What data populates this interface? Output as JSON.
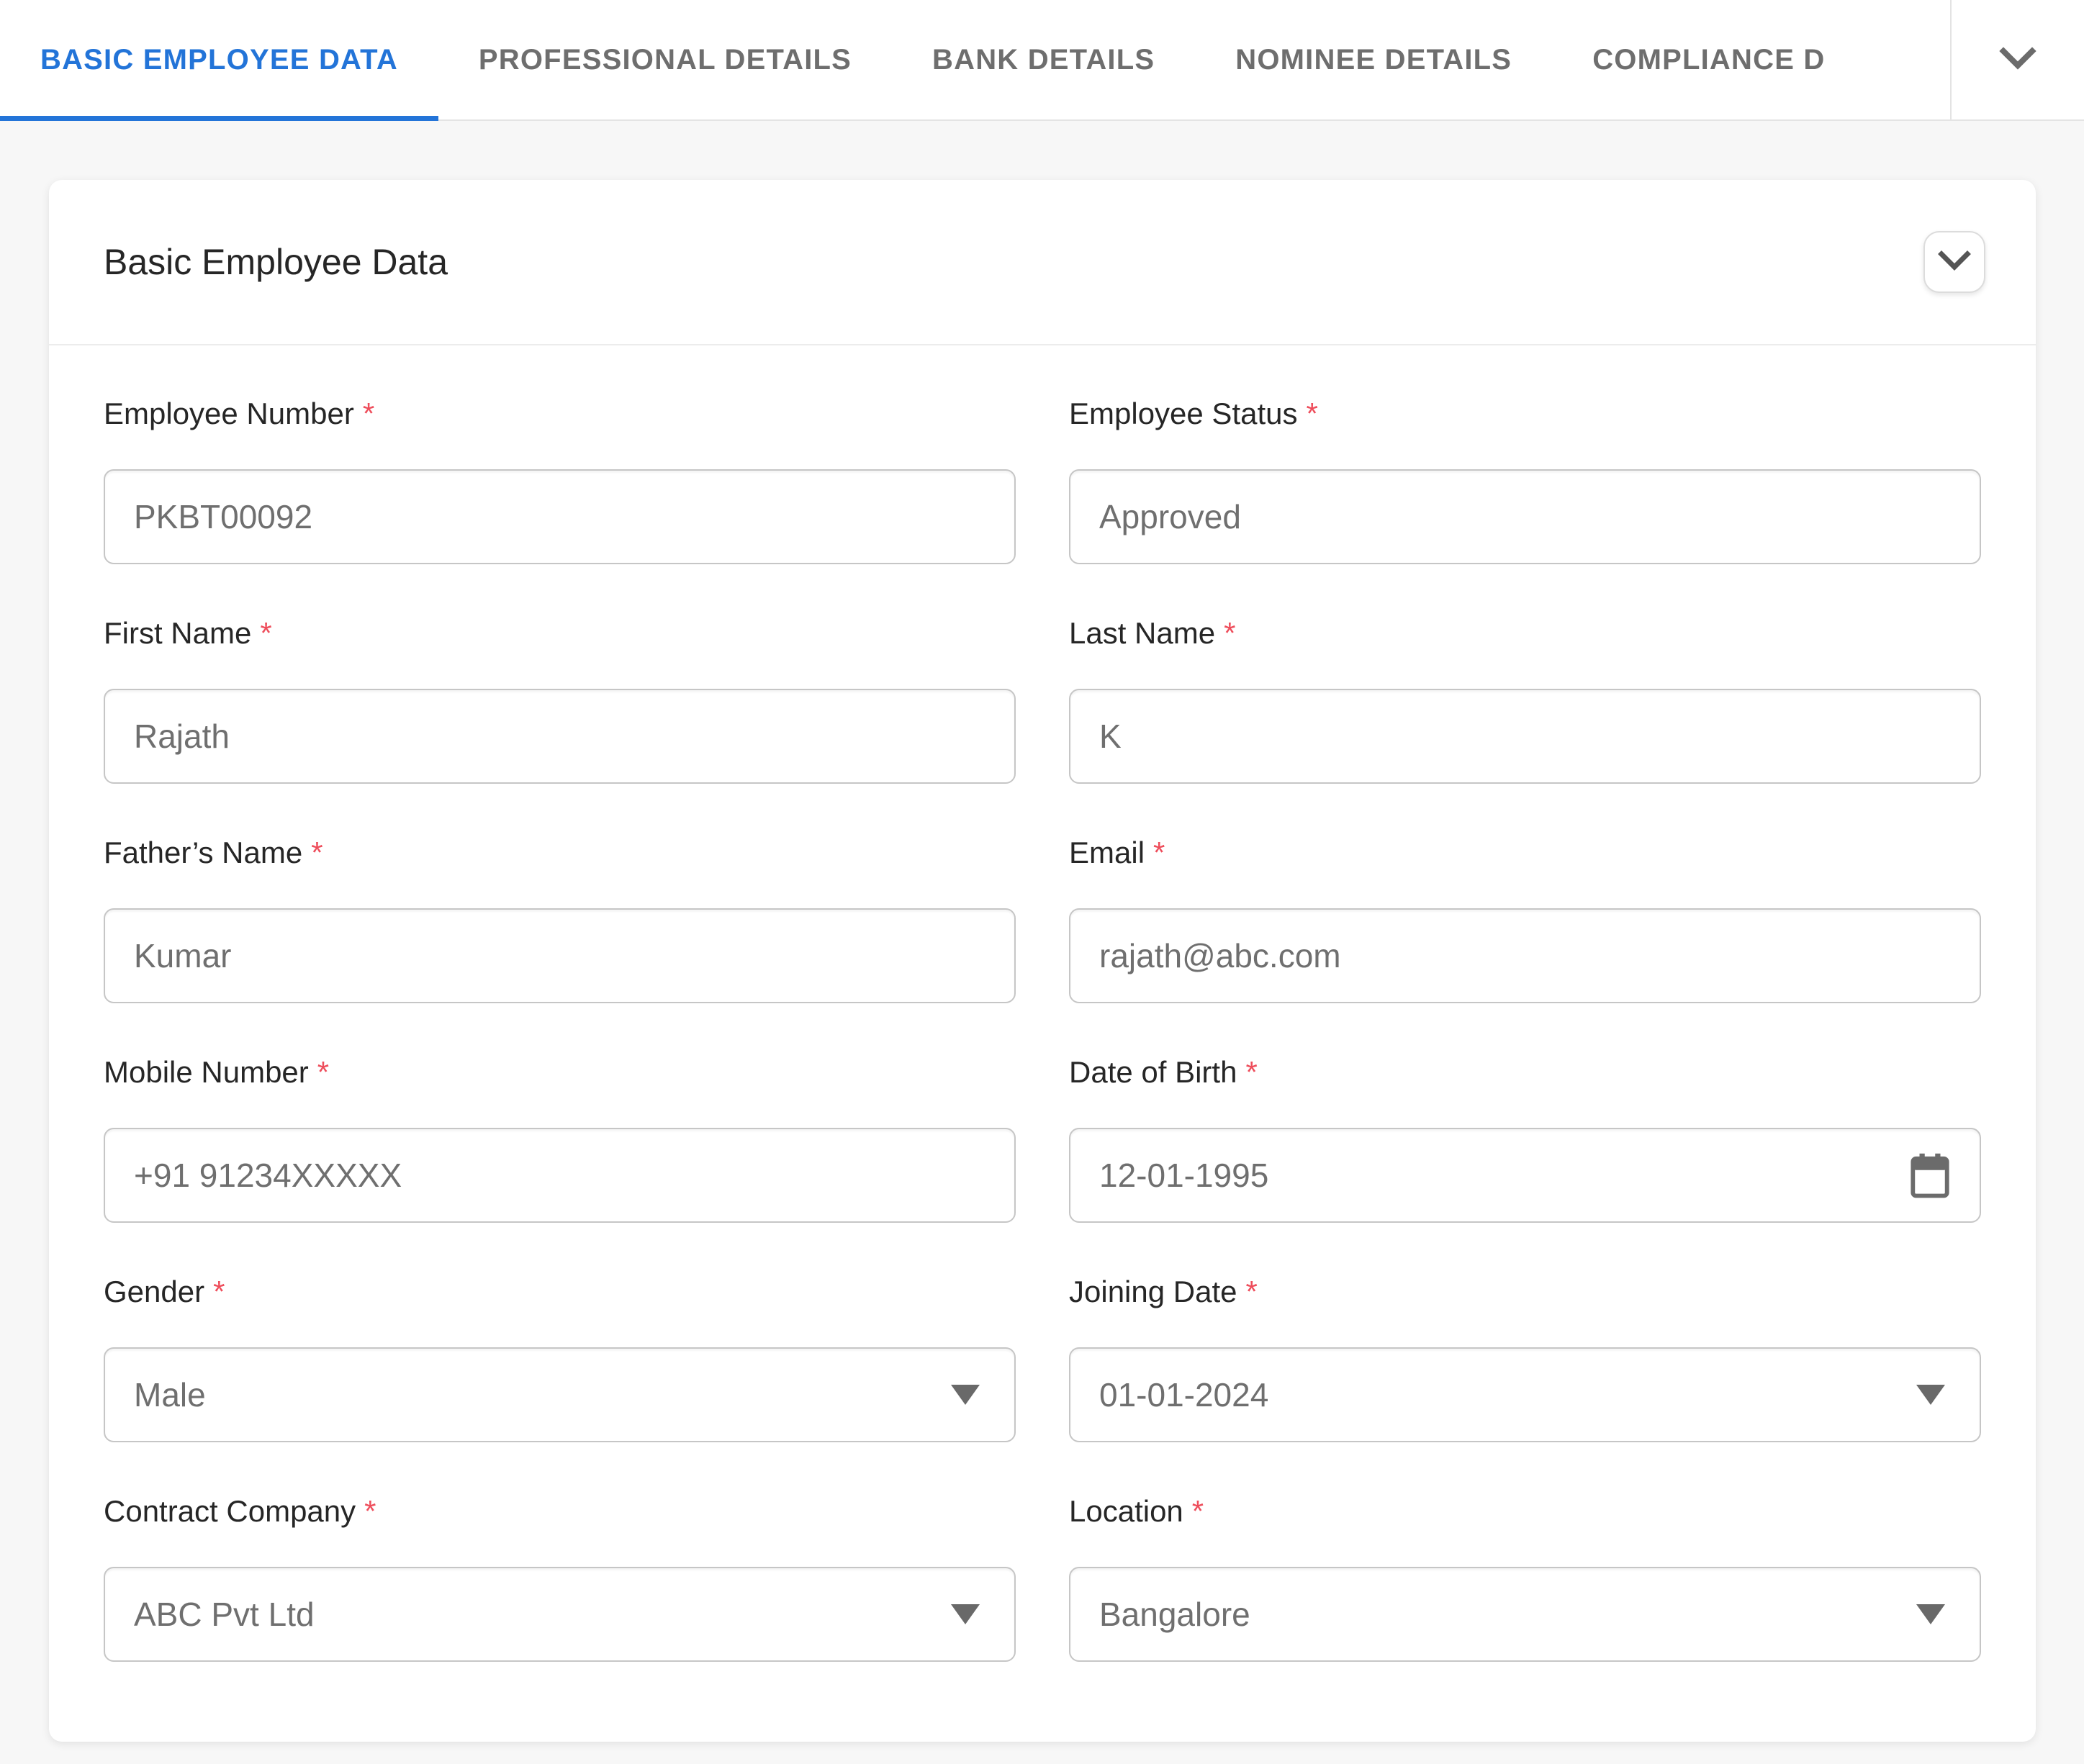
{
  "tabs": {
    "items": [
      {
        "label": "BASIC EMPLOYEE DATA",
        "active": true
      },
      {
        "label": "PROFESSIONAL DETAILS",
        "active": false
      },
      {
        "label": "BANK DETAILS",
        "active": false
      },
      {
        "label": "NOMINEE DETAILS",
        "active": false
      },
      {
        "label": "COMPLIANCE D",
        "active": false
      }
    ],
    "overflow_icon": "chevron-down"
  },
  "card": {
    "title": "Basic Employee Data",
    "collapse_icon": "chevron-down"
  },
  "form": {
    "required_marker": "*",
    "fields": [
      {
        "label": "Employee Number",
        "value": "PKBT00092",
        "type": "text"
      },
      {
        "label": "Employee Status",
        "value": "Approved",
        "type": "text"
      },
      {
        "label": "First Name",
        "value": "Rajath",
        "type": "text"
      },
      {
        "label": "Last Name",
        "value": "K",
        "type": "text"
      },
      {
        "label": "Father’s Name",
        "value": "Kumar",
        "type": "text"
      },
      {
        "label": "Email",
        "value": "rajath@abc.com",
        "type": "text"
      },
      {
        "label": "Mobile Number",
        "value": "+91 91234XXXXX",
        "type": "text"
      },
      {
        "label": "Date of Birth",
        "value": "12-01-1995",
        "type": "date"
      },
      {
        "label": "Gender",
        "value": "Male",
        "type": "select"
      },
      {
        "label": "Joining Date",
        "value": "01-01-2024",
        "type": "select"
      },
      {
        "label": "Contract Company",
        "value": "ABC Pvt Ltd",
        "type": "select"
      },
      {
        "label": "Location",
        "value": "Bangalore",
        "type": "select"
      }
    ]
  },
  "icons": {
    "date_field": "calendar",
    "select_field": "triangle-down"
  },
  "colors": {
    "accent_blue": "#2374d8",
    "required_red": "#ee4d5b",
    "input_border": "#c6c6c6",
    "text_dark": "#262626",
    "text_value": "#6f6f6f"
  }
}
